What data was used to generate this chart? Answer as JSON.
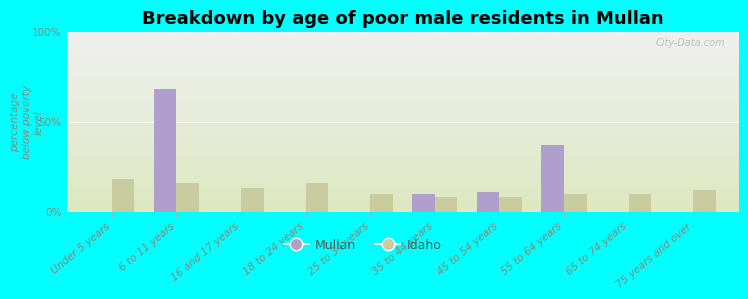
{
  "title": "Breakdown by age of poor male residents in Mullan",
  "ylabel": "percentage\nbelow poverty\nlevel",
  "categories": [
    "Under 5 years",
    "6 to 11 years",
    "16 and 17 years",
    "18 to 24 years",
    "25 to 34 years",
    "35 to 44 years",
    "45 to 54 years",
    "55 to 64 years",
    "65 to 74 years",
    "75 years and over"
  ],
  "mullan_values": [
    0,
    68,
    0,
    0,
    0,
    10,
    11,
    37,
    0,
    0
  ],
  "idaho_values": [
    18,
    16,
    13,
    16,
    10,
    8,
    8,
    10,
    10,
    12
  ],
  "mullan_color": "#b09fcc",
  "idaho_color": "#c8cc9f",
  "bg_color": "#00ffff",
  "plot_bg_top": "#f0f0f0",
  "plot_bg_bottom": "#dde8c0",
  "ylim": [
    0,
    100
  ],
  "yticks": [
    0,
    50,
    100
  ],
  "ytick_labels": [
    "0%",
    "50%",
    "100%"
  ],
  "bar_width": 0.35,
  "title_fontsize": 13,
  "tick_fontsize": 7.5,
  "ylabel_fontsize": 7.5,
  "legend_labels": [
    "Mullan",
    "Idaho"
  ],
  "watermark": "City-Data.com"
}
